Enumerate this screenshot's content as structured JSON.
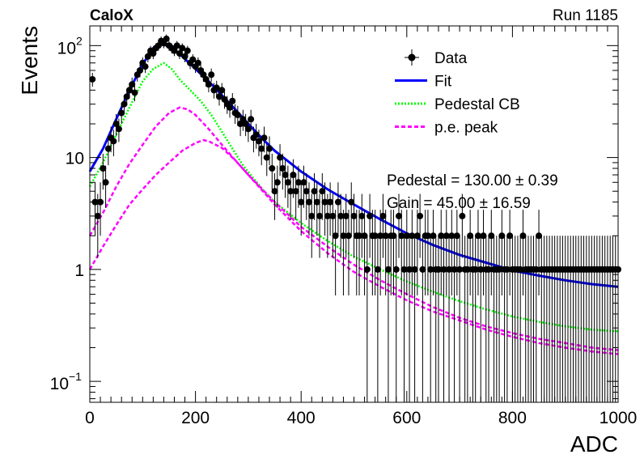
{
  "header": {
    "experiment": "CaloX",
    "run_label": "Run 1185"
  },
  "chart_data": {
    "type": "scatter",
    "xlabel": "ADC",
    "ylabel": "Events",
    "xlim": [
      0,
      1000
    ],
    "ylim": [
      0.065,
      150
    ],
    "yscale": "log",
    "grid": false,
    "legend_placement": "top-right",
    "x_ticks": [
      {
        "value": 0,
        "label": "0"
      },
      {
        "value": 200,
        "label": "200"
      },
      {
        "value": 400,
        "label": "400"
      },
      {
        "value": 600,
        "label": "600"
      },
      {
        "value": 800,
        "label": "800"
      },
      {
        "value": 1000,
        "label": "1000"
      }
    ],
    "y_ticks": [
      {
        "value": 0.1,
        "base": "10",
        "exp": "−1",
        "label": ""
      },
      {
        "value": 1,
        "base": "",
        "exp": "",
        "label": "1"
      },
      {
        "value": 10,
        "base": "",
        "exp": "",
        "label": "10"
      },
      {
        "value": 100,
        "base": "10",
        "exp": "2",
        "label": ""
      }
    ],
    "legend": [
      {
        "label": "Data",
        "style": "marker",
        "color": "#000000"
      },
      {
        "label": "Fit",
        "style": "solid",
        "color": "#0000ff"
      },
      {
        "label": "Pedestal CB",
        "style": "dotted",
        "color": "#00ff00"
      },
      {
        "label": "p.e. peak",
        "style": "dashed",
        "color": "#ff00ff"
      }
    ],
    "annotations": [
      "Pedestal = 130.00 ± 0.39",
      "Gain = 45.00 ± 16.59"
    ],
    "data_series": {
      "name": "Data",
      "color": "#000000",
      "points": [
        [
          5,
          50
        ],
        [
          10,
          4
        ],
        [
          15,
          3
        ],
        [
          20,
          4
        ],
        [
          25,
          8
        ],
        [
          30,
          6
        ],
        [
          35,
          12
        ],
        [
          40,
          15
        ],
        [
          45,
          14
        ],
        [
          50,
          20
        ],
        [
          55,
          18
        ],
        [
          60,
          25
        ],
        [
          65,
          30
        ],
        [
          70,
          35
        ],
        [
          75,
          40
        ],
        [
          80,
          45
        ],
        [
          85,
          38
        ],
        [
          90,
          55
        ],
        [
          95,
          60
        ],
        [
          100,
          70
        ],
        [
          105,
          65
        ],
        [
          110,
          80
        ],
        [
          115,
          90
        ],
        [
          120,
          85
        ],
        [
          125,
          95
        ],
        [
          130,
          100
        ],
        [
          135,
          110
        ],
        [
          140,
          105
        ],
        [
          145,
          115
        ],
        [
          150,
          100
        ],
        [
          155,
          95
        ],
        [
          160,
          90
        ],
        [
          165,
          100
        ],
        [
          170,
          85
        ],
        [
          175,
          95
        ],
        [
          180,
          80
        ],
        [
          185,
          90
        ],
        [
          190,
          70
        ],
        [
          195,
          75
        ],
        [
          200,
          65
        ],
        [
          205,
          70
        ],
        [
          210,
          60
        ],
        [
          215,
          55
        ],
        [
          220,
          50
        ],
        [
          225,
          45
        ],
        [
          230,
          55
        ],
        [
          235,
          40
        ],
        [
          240,
          42
        ],
        [
          245,
          35
        ],
        [
          250,
          40
        ],
        [
          255,
          33
        ],
        [
          260,
          30
        ],
        [
          265,
          28
        ],
        [
          270,
          32
        ],
        [
          275,
          25
        ],
        [
          280,
          24
        ],
        [
          285,
          20
        ],
        [
          290,
          22
        ],
        [
          295,
          20
        ],
        [
          300,
          18
        ],
        [
          305,
          22
        ],
        [
          310,
          15
        ],
        [
          315,
          16
        ],
        [
          320,
          14
        ],
        [
          325,
          12
        ],
        [
          330,
          15
        ],
        [
          335,
          10
        ],
        [
          340,
          12
        ],
        [
          345,
          8
        ],
        [
          350,
          5
        ],
        [
          355,
          6
        ],
        [
          360,
          10
        ],
        [
          365,
          8
        ],
        [
          370,
          7
        ],
        [
          375,
          6
        ],
        [
          380,
          5
        ],
        [
          385,
          7
        ],
        [
          390,
          5
        ],
        [
          395,
          6
        ],
        [
          400,
          4
        ],
        [
          405,
          6
        ],
        [
          410,
          5
        ],
        [
          415,
          4
        ],
        [
          420,
          3
        ],
        [
          425,
          5
        ],
        [
          430,
          4
        ],
        [
          435,
          3
        ],
        [
          440,
          5
        ],
        [
          445,
          4
        ],
        [
          450,
          3
        ],
        [
          455,
          4
        ],
        [
          460,
          3
        ],
        [
          465,
          2
        ],
        [
          470,
          4
        ],
        [
          475,
          3
        ],
        [
          480,
          2
        ],
        [
          485,
          3
        ],
        [
          490,
          2
        ],
        [
          495,
          4
        ],
        [
          500,
          3
        ],
        [
          505,
          2
        ],
        [
          510,
          2
        ],
        [
          515,
          3
        ],
        [
          520,
          2
        ],
        [
          525,
          1
        ],
        [
          530,
          3
        ],
        [
          535,
          2
        ],
        [
          540,
          2
        ],
        [
          545,
          1
        ],
        [
          550,
          2
        ],
        [
          555,
          3
        ],
        [
          560,
          2
        ],
        [
          565,
          1
        ],
        [
          570,
          2
        ],
        [
          575,
          2
        ],
        [
          580,
          1
        ],
        [
          585,
          3
        ],
        [
          590,
          2
        ],
        [
          595,
          1
        ],
        [
          600,
          2
        ],
        [
          605,
          1
        ],
        [
          610,
          2
        ],
        [
          615,
          1
        ],
        [
          620,
          2
        ],
        [
          625,
          3
        ],
        [
          630,
          1
        ],
        [
          635,
          2
        ],
        [
          640,
          2
        ],
        [
          645,
          1
        ],
        [
          650,
          2
        ],
        [
          655,
          1
        ],
        [
          660,
          1
        ],
        [
          665,
          2
        ],
        [
          670,
          1
        ],
        [
          675,
          2
        ],
        [
          680,
          1
        ],
        [
          685,
          2
        ],
        [
          690,
          1
        ],
        [
          695,
          2
        ],
        [
          700,
          1
        ],
        [
          705,
          3
        ],
        [
          710,
          1
        ],
        [
          715,
          1
        ],
        [
          720,
          2
        ],
        [
          725,
          1
        ],
        [
          730,
          1
        ],
        [
          735,
          2
        ],
        [
          740,
          1
        ],
        [
          745,
          2
        ],
        [
          750,
          1
        ],
        [
          755,
          1
        ],
        [
          760,
          2
        ],
        [
          765,
          1
        ],
        [
          770,
          1
        ],
        [
          775,
          1
        ],
        [
          780,
          2
        ],
        [
          785,
          1
        ],
        [
          790,
          1
        ],
        [
          795,
          2
        ],
        [
          800,
          1
        ],
        [
          805,
          1
        ],
        [
          810,
          1
        ],
        [
          815,
          1
        ],
        [
          820,
          2
        ],
        [
          825,
          1
        ],
        [
          830,
          1
        ],
        [
          835,
          1
        ],
        [
          840,
          1
        ],
        [
          845,
          1
        ],
        [
          850,
          2
        ],
        [
          855,
          1
        ],
        [
          860,
          1
        ],
        [
          865,
          1
        ],
        [
          870,
          1
        ],
        [
          875,
          1
        ],
        [
          880,
          1
        ],
        [
          885,
          1
        ],
        [
          890,
          1
        ],
        [
          895,
          1
        ],
        [
          900,
          1
        ],
        [
          905,
          1
        ],
        [
          910,
          1
        ],
        [
          915,
          1
        ],
        [
          920,
          1
        ],
        [
          925,
          1
        ],
        [
          930,
          1
        ],
        [
          935,
          1
        ],
        [
          940,
          1
        ],
        [
          945,
          1
        ],
        [
          950,
          1
        ],
        [
          955,
          1
        ],
        [
          960,
          1
        ],
        [
          965,
          1
        ],
        [
          970,
          1
        ],
        [
          975,
          1
        ],
        [
          980,
          1
        ],
        [
          985,
          1
        ],
        [
          990,
          1
        ],
        [
          995,
          1
        ],
        [
          1000,
          1
        ]
      ]
    },
    "curves": [
      {
        "name": "Fit",
        "color": "#0000ff",
        "style": "solid",
        "points": [
          [
            0,
            7.5
          ],
          [
            25,
            12
          ],
          [
            50,
            22
          ],
          [
            75,
            40
          ],
          [
            100,
            68
          ],
          [
            120,
            95
          ],
          [
            135,
            105
          ],
          [
            150,
            98
          ],
          [
            175,
            80
          ],
          [
            200,
            62
          ],
          [
            225,
            48
          ],
          [
            250,
            36
          ],
          [
            275,
            27
          ],
          [
            300,
            20
          ],
          [
            325,
            15
          ],
          [
            350,
            11.5
          ],
          [
            400,
            7.5
          ],
          [
            450,
            5.2
          ],
          [
            500,
            3.8
          ],
          [
            550,
            2.8
          ],
          [
            600,
            2.1
          ],
          [
            650,
            1.65
          ],
          [
            700,
            1.35
          ],
          [
            750,
            1.15
          ],
          [
            800,
            0.98
          ],
          [
            850,
            0.88
          ],
          [
            900,
            0.8
          ],
          [
            950,
            0.74
          ],
          [
            1000,
            0.7
          ]
        ]
      },
      {
        "name": "Pedestal CB",
        "color": "#00ff00",
        "style": "dotted",
        "points": [
          [
            0,
            5.5
          ],
          [
            25,
            9
          ],
          [
            50,
            16
          ],
          [
            75,
            28
          ],
          [
            100,
            48
          ],
          [
            120,
            62
          ],
          [
            140,
            70
          ],
          [
            155,
            62
          ],
          [
            170,
            50
          ],
          [
            190,
            40
          ],
          [
            210,
            32
          ],
          [
            230,
            24
          ],
          [
            250,
            17
          ],
          [
            270,
            12
          ],
          [
            290,
            8.5
          ],
          [
            310,
            6.5
          ],
          [
            330,
            5
          ],
          [
            350,
            4
          ],
          [
            400,
            2.6
          ],
          [
            450,
            1.8
          ],
          [
            500,
            1.3
          ],
          [
            550,
            1
          ],
          [
            600,
            0.78
          ],
          [
            650,
            0.63
          ],
          [
            700,
            0.52
          ],
          [
            750,
            0.44
          ],
          [
            800,
            0.38
          ],
          [
            850,
            0.34
          ],
          [
            900,
            0.31
          ],
          [
            950,
            0.29
          ],
          [
            1000,
            0.28
          ]
        ]
      },
      {
        "name": "p.e. peak",
        "color": "#ff00ff",
        "style": "dashed",
        "points": [
          [
            0,
            2
          ],
          [
            25,
            3.2
          ],
          [
            50,
            5.5
          ],
          [
            75,
            8.8
          ],
          [
            100,
            13
          ],
          [
            125,
            19
          ],
          [
            150,
            25
          ],
          [
            170,
            28
          ],
          [
            185,
            27
          ],
          [
            200,
            24
          ],
          [
            225,
            18
          ],
          [
            250,
            13
          ],
          [
            275,
            9.5
          ],
          [
            300,
            7
          ],
          [
            350,
            4
          ],
          [
            400,
            2.4
          ],
          [
            450,
            1.6
          ],
          [
            500,
            1.1
          ],
          [
            550,
            0.8
          ],
          [
            600,
            0.6
          ],
          [
            650,
            0.46
          ],
          [
            700,
            0.37
          ],
          [
            750,
            0.31
          ],
          [
            800,
            0.27
          ],
          [
            850,
            0.24
          ],
          [
            900,
            0.22
          ],
          [
            950,
            0.2
          ],
          [
            1000,
            0.19
          ]
        ]
      },
      {
        "name": "p.e. peak",
        "color": "#ff00ff",
        "style": "dashed",
        "points": [
          [
            0,
            1
          ],
          [
            25,
            1.6
          ],
          [
            50,
            2.5
          ],
          [
            75,
            3.8
          ],
          [
            100,
            5.2
          ],
          [
            125,
            7
          ],
          [
            150,
            9
          ],
          [
            175,
            11.5
          ],
          [
            200,
            13.5
          ],
          [
            215,
            14.3
          ],
          [
            225,
            14
          ],
          [
            250,
            12.2
          ],
          [
            275,
            9.5
          ],
          [
            300,
            7
          ],
          [
            350,
            3.8
          ],
          [
            400,
            2.2
          ],
          [
            450,
            1.4
          ],
          [
            500,
            0.95
          ],
          [
            550,
            0.7
          ],
          [
            600,
            0.53
          ],
          [
            650,
            0.42
          ],
          [
            700,
            0.35
          ],
          [
            750,
            0.29
          ],
          [
            800,
            0.25
          ],
          [
            850,
            0.22
          ],
          [
            900,
            0.2
          ],
          [
            950,
            0.185
          ],
          [
            1000,
            0.175
          ]
        ]
      }
    ]
  }
}
